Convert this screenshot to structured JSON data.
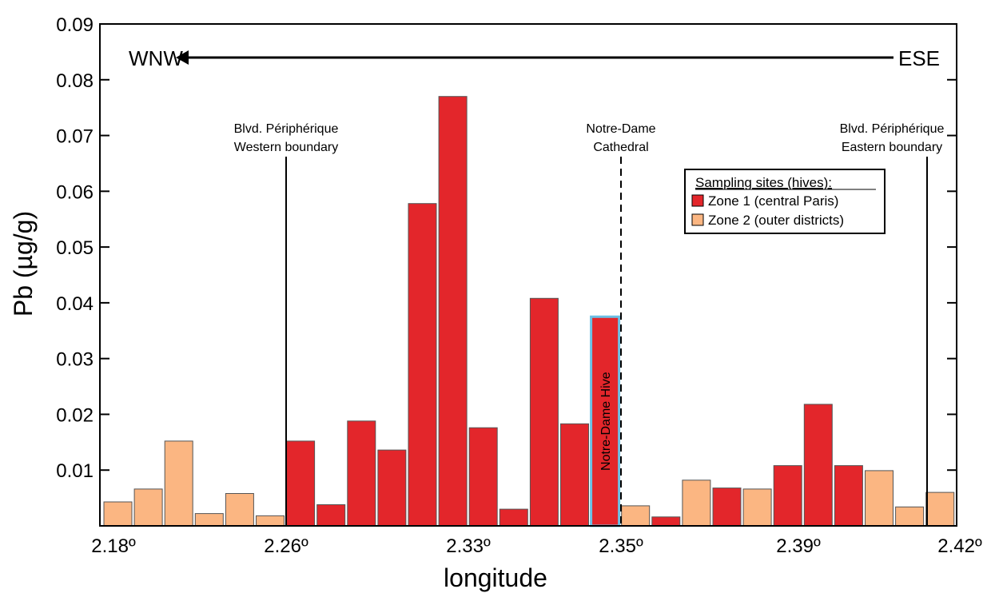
{
  "chart_data": {
    "type": "bar",
    "ylabel": "Pb (µg/g)",
    "xlabel": "longitude",
    "ylim": [
      0,
      0.09
    ],
    "y_ticks": [
      0.01,
      0.02,
      0.03,
      0.04,
      0.05,
      0.06,
      0.07,
      0.08,
      0.09
    ],
    "y_tick_labels": [
      "0.01",
      "0.02",
      "0.03",
      "0.04",
      "0.05",
      "0.06",
      "0.07",
      "0.08",
      "0.09"
    ],
    "x_tick_labels": [
      "2.18º",
      "2.26º",
      "2.33º",
      "2.35º",
      "2.39º",
      "2.42º"
    ],
    "directions": {
      "left": "WNW",
      "right": "ESE"
    },
    "legend": {
      "title": "Sampling sites (hives):",
      "placement": "top-right",
      "entries": [
        {
          "label": "Zone 1 (central Paris)",
          "zone": 1,
          "color": "#e3262b"
        },
        {
          "label": "Zone 2 (outer districts)",
          "zone": 2,
          "color": "#fbb682"
        }
      ]
    },
    "annotations": {
      "western": [
        "Blvd. Périphérique",
        "Western boundary"
      ],
      "cathedral": [
        "Notre-Dame",
        "Cathedral"
      ],
      "eastern": [
        "Blvd. Périphérique",
        "Eastern boundary"
      ],
      "hive": "Notre-Dame Hive"
    },
    "colors": {
      "zone1": "#e3262b",
      "zone2": "#fbb682",
      "highlight": "#6cc0e5"
    },
    "bars": [
      {
        "value": 0.0043,
        "zone": 2
      },
      {
        "value": 0.0066,
        "zone": 2
      },
      {
        "value": 0.0152,
        "zone": 2
      },
      {
        "value": 0.0022,
        "zone": 2
      },
      {
        "value": 0.0058,
        "zone": 2
      },
      {
        "value": 0.0018,
        "zone": 2
      },
      {
        "value": 0.0152,
        "zone": 1
      },
      {
        "value": 0.0038,
        "zone": 1
      },
      {
        "value": 0.0188,
        "zone": 1
      },
      {
        "value": 0.0136,
        "zone": 1
      },
      {
        "value": 0.0578,
        "zone": 1
      },
      {
        "value": 0.077,
        "zone": 1
      },
      {
        "value": 0.0176,
        "zone": 1
      },
      {
        "value": 0.003,
        "zone": 1
      },
      {
        "value": 0.0408,
        "zone": 1
      },
      {
        "value": 0.0183,
        "zone": 1
      },
      {
        "value": 0.0375,
        "zone": 1,
        "highlight": true
      },
      {
        "value": 0.0036,
        "zone": 2
      },
      {
        "value": 0.0016,
        "zone": 1
      },
      {
        "value": 0.0082,
        "zone": 2
      },
      {
        "value": 0.0068,
        "zone": 1
      },
      {
        "value": 0.0066,
        "zone": 2
      },
      {
        "value": 0.0108,
        "zone": 1
      },
      {
        "value": 0.0218,
        "zone": 1
      },
      {
        "value": 0.0108,
        "zone": 1
      },
      {
        "value": 0.0099,
        "zone": 2
      },
      {
        "value": 0.0034,
        "zone": 2
      },
      {
        "value": 0.006,
        "zone": 2
      }
    ]
  }
}
